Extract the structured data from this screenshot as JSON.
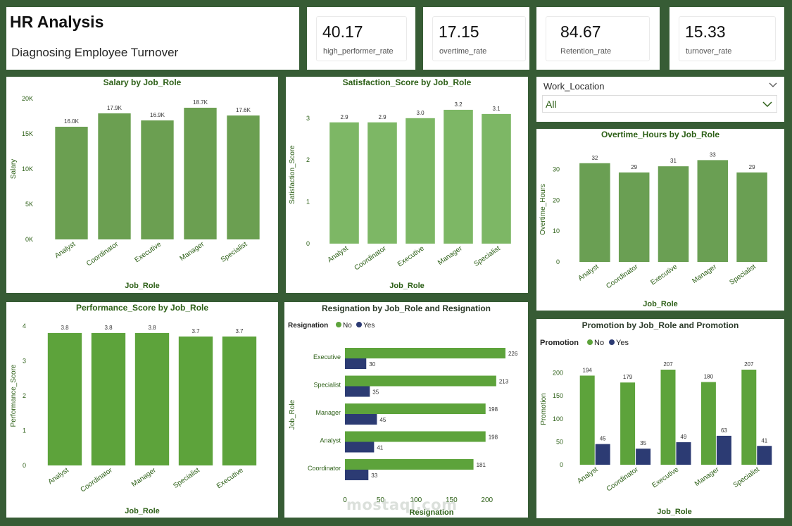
{
  "header": {
    "title": "HR Analysis",
    "subtitle": "Diagnosing Employee Turnover"
  },
  "kpis": [
    {
      "value": "40.17",
      "label": "high_performer_rate"
    },
    {
      "value": "17.15",
      "label": "overtime_rate"
    },
    {
      "value": "84.67",
      "label": "Retention_rate"
    },
    {
      "value": "15.33",
      "label": "turnover_rate"
    }
  ],
  "slicer": {
    "label": "Work_Location",
    "value": "All"
  },
  "watermark": "mostaql.com",
  "colors": {
    "background": "#375c35",
    "bar_salary": "#6b9f51",
    "bar_satisfaction": "#7db765",
    "bar_overtime": "#6a9f53",
    "bar_performance": "#5da33b",
    "no": "#5da33b",
    "yes": "#2c3b73",
    "label_green": "#2c5f16"
  },
  "chart_data": [
    {
      "id": "salary",
      "type": "bar",
      "title": "Salary by Job_Role",
      "xlabel": "Job_Role",
      "ylabel": "Salary",
      "categories": [
        "Analyst",
        "Coordinator",
        "Executive",
        "Manager",
        "Specialist"
      ],
      "values": [
        16000,
        17900,
        16900,
        18700,
        17600
      ],
      "data_labels": [
        "16.0K",
        "17.9K",
        "16.9K",
        "18.7K",
        "17.6K"
      ],
      "ylim": [
        0,
        20000
      ],
      "yticks": [
        0,
        5000,
        10000,
        15000,
        20000
      ],
      "ytick_labels": [
        "0K",
        "5K",
        "10K",
        "15K",
        "20K"
      ]
    },
    {
      "id": "satisfaction",
      "type": "bar",
      "title": "Satisfaction_Score by Job_Role",
      "xlabel": "Job_Role",
      "ylabel": "Satisfaction_Score",
      "categories": [
        "Analyst",
        "Coordinator",
        "Executive",
        "Manager",
        "Specialist"
      ],
      "values": [
        2.9,
        2.9,
        3.0,
        3.2,
        3.1
      ],
      "data_labels": [
        "2.9",
        "2.9",
        "3.0",
        "3.2",
        "3.1"
      ],
      "ylim": [
        0,
        3.3
      ],
      "yticks": [
        0,
        1,
        2,
        3
      ],
      "ytick_labels": [
        "0",
        "1",
        "2",
        "3"
      ]
    },
    {
      "id": "overtime",
      "type": "bar",
      "title": "Overtime_Hours by Job_Role",
      "xlabel": "Job_Role",
      "ylabel": "Overtime_Hours",
      "categories": [
        "Analyst",
        "Coordinator",
        "Executive",
        "Manager",
        "Specialist"
      ],
      "values": [
        32,
        29,
        31,
        33,
        29
      ],
      "data_labels": [
        "32",
        "29",
        "31",
        "33",
        "29"
      ],
      "ylim": [
        0,
        34
      ],
      "yticks": [
        0,
        10,
        20,
        30
      ],
      "ytick_labels": [
        "0",
        "10",
        "20",
        "30"
      ]
    },
    {
      "id": "performance",
      "type": "bar",
      "title": "Performance_Score by Job_Role",
      "xlabel": "Job_Role",
      "ylabel": "Performance_Score",
      "categories": [
        "Analyst",
        "Coordinator",
        "Manager",
        "Specialist",
        "Executive"
      ],
      "values": [
        3.8,
        3.8,
        3.8,
        3.7,
        3.7
      ],
      "data_labels": [
        "3.8",
        "3.8",
        "3.8",
        "3.7",
        "3.7"
      ],
      "ylim": [
        0,
        4
      ],
      "yticks": [
        0,
        1,
        2,
        3,
        4
      ],
      "ytick_labels": [
        "0",
        "1",
        "2",
        "3",
        "4"
      ]
    },
    {
      "id": "resignation",
      "type": "bar",
      "orientation": "horizontal",
      "title": "Resignation by Job_Role and Resignation",
      "xlabel": "Resignation",
      "ylabel": "Job_Role",
      "legend_title": "Resignation",
      "legend_position": "top-left",
      "categories": [
        "Executive",
        "Specialist",
        "Manager",
        "Analyst",
        "Coordinator"
      ],
      "series": [
        {
          "name": "No",
          "values": [
            226,
            213,
            198,
            198,
            181
          ]
        },
        {
          "name": "Yes",
          "values": [
            30,
            35,
            45,
            41,
            33
          ]
        }
      ],
      "xlim": [
        0,
        230
      ],
      "xticks": [
        0,
        50,
        100,
        150,
        200
      ],
      "xtick_labels": [
        "0",
        "50",
        "100",
        "150",
        "200"
      ]
    },
    {
      "id": "promotion",
      "type": "bar",
      "title": "Promotion by Job_Role and Promotion",
      "xlabel": "Job_Role",
      "ylabel": "Promotion",
      "legend_title": "Promotion",
      "legend_position": "top-left",
      "categories": [
        "Analyst",
        "Coordinator",
        "Executive",
        "Manager",
        "Specialist"
      ],
      "series": [
        {
          "name": "No",
          "values": [
            194,
            179,
            207,
            180,
            207
          ]
        },
        {
          "name": "Yes",
          "values": [
            45,
            35,
            49,
            63,
            41
          ]
        }
      ],
      "ylim": [
        0,
        210
      ],
      "yticks": [
        0,
        50,
        100,
        150,
        200
      ],
      "ytick_labels": [
        "0",
        "50",
        "100",
        "150",
        "200"
      ]
    }
  ]
}
